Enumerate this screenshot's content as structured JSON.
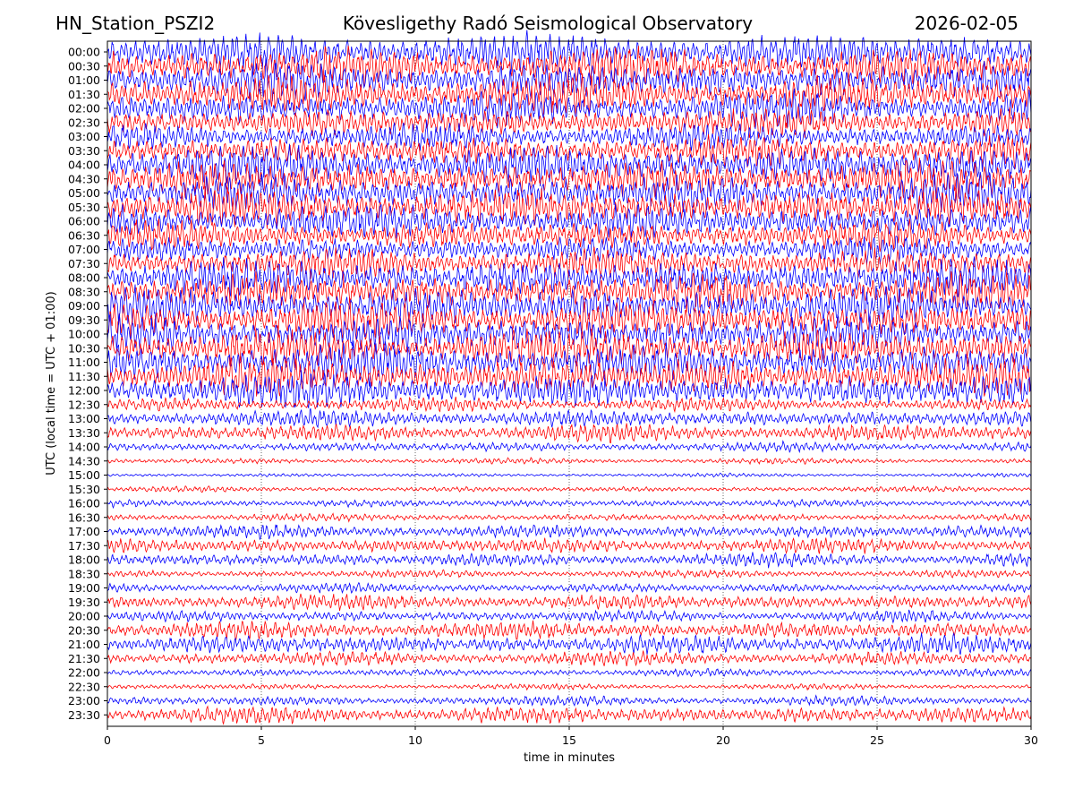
{
  "header": {
    "station": "HN_Station_PSZI2",
    "observatory": "Kövesligethy Radó Seismological Observatory",
    "date": "2026-02-05"
  },
  "chart_data": {
    "type": "line",
    "xlabel": "time in minutes",
    "ylabel": "UTC (local time = UTC + 01:00)",
    "xlim": [
      0,
      30
    ],
    "x_ticks": [
      0,
      5,
      10,
      15,
      20,
      25,
      30
    ],
    "grid_x": true,
    "trace_colors": [
      "#0000ff",
      "#ff0000"
    ],
    "rows": [
      {
        "label": "00:00",
        "amplitude": 1.0
      },
      {
        "label": "00:30",
        "amplitude": 1.0
      },
      {
        "label": "01:00",
        "amplitude": 1.0
      },
      {
        "label": "01:30",
        "amplitude": 1.0
      },
      {
        "label": "02:00",
        "amplitude": 0.9
      },
      {
        "label": "02:30",
        "amplitude": 0.8
      },
      {
        "label": "03:00",
        "amplitude": 0.7
      },
      {
        "label": "03:30",
        "amplitude": 0.8
      },
      {
        "label": "04:00",
        "amplitude": 1.0
      },
      {
        "label": "04:30",
        "amplitude": 1.0
      },
      {
        "label": "05:00",
        "amplitude": 1.0
      },
      {
        "label": "05:30",
        "amplitude": 1.0
      },
      {
        "label": "06:00",
        "amplitude": 0.9
      },
      {
        "label": "06:30",
        "amplitude": 0.8
      },
      {
        "label": "07:00",
        "amplitude": 0.7
      },
      {
        "label": "07:30",
        "amplitude": 0.8
      },
      {
        "label": "08:00",
        "amplitude": 1.0
      },
      {
        "label": "08:30",
        "amplitude": 1.0
      },
      {
        "label": "09:00",
        "amplitude": 1.0
      },
      {
        "label": "09:30",
        "amplitude": 1.0
      },
      {
        "label": "10:00",
        "amplitude": 1.0
      },
      {
        "label": "10:30",
        "amplitude": 1.0
      },
      {
        "label": "11:00",
        "amplitude": 1.0
      },
      {
        "label": "11:30",
        "amplitude": 1.0
      },
      {
        "label": "12:00",
        "amplitude": 0.9
      },
      {
        "label": "12:30",
        "amplitude": 0.35
      },
      {
        "label": "13:00",
        "amplitude": 0.45
      },
      {
        "label": "13:30",
        "amplitude": 0.45
      },
      {
        "label": "14:00",
        "amplitude": 0.25
      },
      {
        "label": "14:30",
        "amplitude": 0.15
      },
      {
        "label": "15:00",
        "amplitude": 0.1
      },
      {
        "label": "15:30",
        "amplitude": 0.15
      },
      {
        "label": "16:00",
        "amplitude": 0.2
      },
      {
        "label": "16:30",
        "amplitude": 0.2
      },
      {
        "label": "17:00",
        "amplitude": 0.35
      },
      {
        "label": "17:30",
        "amplitude": 0.4
      },
      {
        "label": "18:00",
        "amplitude": 0.35
      },
      {
        "label": "18:30",
        "amplitude": 0.2
      },
      {
        "label": "19:00",
        "amplitude": 0.25
      },
      {
        "label": "19:30",
        "amplitude": 0.4
      },
      {
        "label": "20:00",
        "amplitude": 0.3
      },
      {
        "label": "20:30",
        "amplitude": 0.45
      },
      {
        "label": "21:00",
        "amplitude": 0.5
      },
      {
        "label": "21:30",
        "amplitude": 0.35
      },
      {
        "label": "22:00",
        "amplitude": 0.2
      },
      {
        "label": "22:30",
        "amplitude": 0.15
      },
      {
        "label": "23:00",
        "amplitude": 0.25
      },
      {
        "label": "23:30",
        "amplitude": 0.45
      }
    ]
  }
}
